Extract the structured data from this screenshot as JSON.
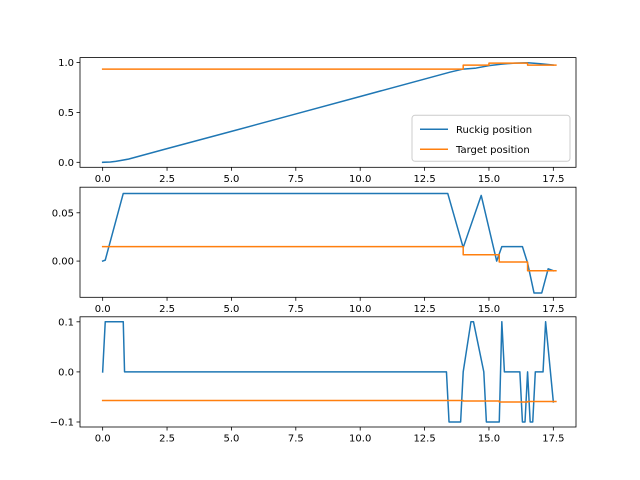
{
  "chart_data": [
    {
      "type": "line",
      "xlim": [
        -0.88,
        18.38
      ],
      "ylim": [
        -0.05,
        1.05
      ],
      "xticks": [
        0.0,
        2.5,
        5.0,
        7.5,
        10.0,
        12.5,
        15.0,
        17.5
      ],
      "xtick_labels": [
        "0.0",
        "2.5",
        "5.0",
        "7.5",
        "10.0",
        "12.5",
        "15.0",
        "17.5"
      ],
      "yticks": [
        0.0,
        0.5,
        1.0
      ],
      "ytick_labels": [
        "0.0",
        "0.5",
        "1.0"
      ],
      "legend": {
        "placement": "lower-right",
        "entries": [
          "Ruckig position",
          "Target position"
        ]
      },
      "series": [
        {
          "name": "Ruckig position",
          "color": "#1f77b4",
          "x": [
            0.0,
            0.3,
            0.5,
            0.7,
            1.0,
            2.5,
            5.0,
            7.5,
            10.0,
            12.5,
            13.5,
            14.0,
            14.5,
            15.0,
            15.5,
            16.0,
            16.5,
            17.0,
            17.5
          ],
          "y": [
            0.0,
            0.003,
            0.009,
            0.018,
            0.032,
            0.137,
            0.31,
            0.485,
            0.66,
            0.835,
            0.905,
            0.935,
            0.945,
            0.97,
            0.985,
            0.995,
            0.998,
            0.988,
            0.975
          ]
        },
        {
          "name": "Target position",
          "color": "#ff7f0e",
          "x": [
            0.0,
            14.0,
            14.0,
            15.0,
            15.0,
            16.5,
            16.5,
            17.6
          ],
          "y": [
            0.935,
            0.935,
            0.975,
            0.975,
            0.995,
            0.995,
            0.975,
            0.975
          ]
        }
      ]
    },
    {
      "type": "line",
      "xlim": [
        -0.88,
        18.38
      ],
      "ylim": [
        -0.0375,
        0.0765
      ],
      "xticks": [
        0.0,
        2.5,
        5.0,
        7.5,
        10.0,
        12.5,
        15.0,
        17.5
      ],
      "xtick_labels": [
        "0.0",
        "2.5",
        "5.0",
        "7.5",
        "10.0",
        "12.5",
        "15.0",
        "17.5"
      ],
      "yticks": [
        0.0,
        0.05
      ],
      "ytick_labels": [
        "0.00",
        "0.05"
      ],
      "series": [
        {
          "color": "#1f77b4",
          "x": [
            0.0,
            0.1,
            0.8,
            13.4,
            14.0,
            14.7,
            15.3,
            15.5,
            16.0,
            16.3,
            16.5,
            16.75,
            17.05,
            17.3,
            17.5
          ],
          "y": [
            0.0,
            0.001,
            0.07,
            0.07,
            0.014,
            0.068,
            0.0,
            0.015,
            0.015,
            0.015,
            -0.002,
            -0.033,
            -0.033,
            -0.008,
            -0.01
          ]
        },
        {
          "color": "#ff7f0e",
          "x": [
            0.0,
            14.0,
            14.0,
            15.4,
            15.4,
            16.5,
            16.5,
            17.6
          ],
          "y": [
            0.015,
            0.015,
            0.0065,
            0.0065,
            -0.001,
            -0.001,
            -0.01,
            -0.01
          ]
        }
      ]
    },
    {
      "type": "line",
      "xlim": [
        -0.88,
        18.38
      ],
      "ylim": [
        -0.11,
        0.11
      ],
      "xticks": [
        0.0,
        2.5,
        5.0,
        7.5,
        10.0,
        12.5,
        15.0,
        17.5
      ],
      "xtick_labels": [
        "0.0",
        "2.5",
        "5.0",
        "7.5",
        "10.0",
        "12.5",
        "15.0",
        "17.5"
      ],
      "yticks": [
        -0.1,
        0.0,
        0.1
      ],
      "ytick_labels": [
        "−0.1",
        "0.0",
        "0.1"
      ],
      "series": [
        {
          "color": "#1f77b4",
          "x": [
            0.0,
            0.1,
            0.8,
            0.85,
            13.35,
            13.45,
            13.9,
            14.0,
            14.3,
            14.4,
            14.8,
            14.9,
            15.4,
            15.5,
            15.6,
            15.7,
            16.2,
            16.3,
            16.4,
            16.5,
            16.6,
            16.7,
            16.8,
            17.1,
            17.2,
            17.5
          ],
          "y": [
            0.0,
            0.1,
            0.1,
            0.0,
            0.0,
            -0.1,
            -0.1,
            0.0,
            0.1,
            0.1,
            0.0,
            -0.1,
            -0.1,
            0.1,
            0.0,
            0.0,
            0.0,
            -0.1,
            -0.1,
            0.0,
            -0.1,
            -0.1,
            0.0,
            0.0,
            0.1,
            -0.06
          ]
        },
        {
          "color": "#ff7f0e",
          "x": [
            0.0,
            14.0,
            14.0,
            15.4,
            15.4,
            16.5,
            16.5,
            17.6
          ],
          "y": [
            -0.057,
            -0.057,
            -0.058,
            -0.058,
            -0.06,
            -0.06,
            -0.059,
            -0.059
          ]
        }
      ]
    }
  ]
}
